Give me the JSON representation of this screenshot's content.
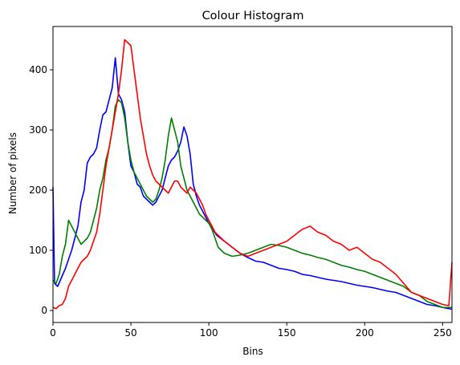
{
  "chart_data": {
    "type": "line",
    "title": "Colour Histogram",
    "xlabel": "Bins",
    "ylabel": "Number of pixels",
    "xlim": [
      0,
      256
    ],
    "ylim": [
      -20,
      472
    ],
    "xticks": [
      0,
      50,
      100,
      150,
      200,
      250
    ],
    "yticks": [
      0,
      100,
      200,
      300,
      400
    ],
    "grid": false,
    "series": [
      {
        "color": "#0000ff",
        "points": [
          [
            0,
            205
          ],
          [
            1,
            45
          ],
          [
            3,
            40
          ],
          [
            5,
            52
          ],
          [
            8,
            70
          ],
          [
            10,
            85
          ],
          [
            12,
            100
          ],
          [
            14,
            120
          ],
          [
            16,
            140
          ],
          [
            18,
            180
          ],
          [
            20,
            200
          ],
          [
            22,
            245
          ],
          [
            24,
            255
          ],
          [
            26,
            260
          ],
          [
            28,
            270
          ],
          [
            30,
            300
          ],
          [
            32,
            325
          ],
          [
            34,
            330
          ],
          [
            36,
            350
          ],
          [
            38,
            370
          ],
          [
            40,
            420
          ],
          [
            42,
            360
          ],
          [
            44,
            350
          ],
          [
            46,
            330
          ],
          [
            48,
            280
          ],
          [
            50,
            240
          ],
          [
            52,
            230
          ],
          [
            54,
            210
          ],
          [
            56,
            205
          ],
          [
            58,
            190
          ],
          [
            60,
            185
          ],
          [
            62,
            180
          ],
          [
            64,
            175
          ],
          [
            66,
            180
          ],
          [
            68,
            190
          ],
          [
            70,
            200
          ],
          [
            72,
            220
          ],
          [
            74,
            240
          ],
          [
            76,
            250
          ],
          [
            78,
            255
          ],
          [
            80,
            265
          ],
          [
            82,
            280
          ],
          [
            84,
            305
          ],
          [
            86,
            290
          ],
          [
            88,
            260
          ],
          [
            90,
            210
          ],
          [
            92,
            190
          ],
          [
            94,
            175
          ],
          [
            96,
            165
          ],
          [
            98,
            155
          ],
          [
            100,
            145
          ],
          [
            105,
            125
          ],
          [
            110,
            115
          ],
          [
            115,
            105
          ],
          [
            120,
            95
          ],
          [
            125,
            88
          ],
          [
            130,
            82
          ],
          [
            135,
            80
          ],
          [
            140,
            75
          ],
          [
            145,
            70
          ],
          [
            150,
            68
          ],
          [
            155,
            65
          ],
          [
            160,
            60
          ],
          [
            165,
            58
          ],
          [
            170,
            55
          ],
          [
            175,
            52
          ],
          [
            180,
            50
          ],
          [
            185,
            48
          ],
          [
            190,
            45
          ],
          [
            195,
            42
          ],
          [
            200,
            40
          ],
          [
            205,
            38
          ],
          [
            210,
            35
          ],
          [
            215,
            32
          ],
          [
            220,
            30
          ],
          [
            225,
            25
          ],
          [
            230,
            20
          ],
          [
            235,
            15
          ],
          [
            240,
            10
          ],
          [
            245,
            8
          ],
          [
            250,
            5
          ],
          [
            256,
            2
          ]
        ]
      },
      {
        "color": "#008000",
        "points": [
          [
            0,
            50
          ],
          [
            2,
            45
          ],
          [
            4,
            60
          ],
          [
            6,
            90
          ],
          [
            8,
            110
          ],
          [
            10,
            150
          ],
          [
            12,
            140
          ],
          [
            14,
            130
          ],
          [
            16,
            120
          ],
          [
            18,
            110
          ],
          [
            20,
            115
          ],
          [
            22,
            120
          ],
          [
            24,
            130
          ],
          [
            26,
            150
          ],
          [
            28,
            170
          ],
          [
            30,
            200
          ],
          [
            32,
            220
          ],
          [
            34,
            250
          ],
          [
            36,
            270
          ],
          [
            38,
            300
          ],
          [
            40,
            340
          ],
          [
            42,
            350
          ],
          [
            44,
            345
          ],
          [
            46,
            320
          ],
          [
            48,
            280
          ],
          [
            50,
            250
          ],
          [
            52,
            230
          ],
          [
            54,
            220
          ],
          [
            56,
            210
          ],
          [
            58,
            200
          ],
          [
            60,
            190
          ],
          [
            62,
            185
          ],
          [
            64,
            180
          ],
          [
            66,
            185
          ],
          [
            68,
            200
          ],
          [
            70,
            220
          ],
          [
            72,
            250
          ],
          [
            74,
            290
          ],
          [
            76,
            320
          ],
          [
            78,
            300
          ],
          [
            80,
            280
          ],
          [
            82,
            240
          ],
          [
            84,
            220
          ],
          [
            86,
            200
          ],
          [
            88,
            190
          ],
          [
            90,
            180
          ],
          [
            92,
            170
          ],
          [
            94,
            160
          ],
          [
            96,
            155
          ],
          [
            98,
            150
          ],
          [
            100,
            145
          ],
          [
            102,
            135
          ],
          [
            104,
            120
          ],
          [
            106,
            105
          ],
          [
            108,
            100
          ],
          [
            110,
            95
          ],
          [
            115,
            90
          ],
          [
            120,
            92
          ],
          [
            125,
            95
          ],
          [
            130,
            100
          ],
          [
            135,
            105
          ],
          [
            140,
            110
          ],
          [
            145,
            108
          ],
          [
            150,
            105
          ],
          [
            155,
            100
          ],
          [
            160,
            95
          ],
          [
            165,
            92
          ],
          [
            170,
            88
          ],
          [
            175,
            85
          ],
          [
            180,
            80
          ],
          [
            185,
            75
          ],
          [
            190,
            72
          ],
          [
            195,
            68
          ],
          [
            200,
            65
          ],
          [
            205,
            60
          ],
          [
            210,
            55
          ],
          [
            215,
            50
          ],
          [
            220,
            45
          ],
          [
            225,
            40
          ],
          [
            230,
            30
          ],
          [
            235,
            25
          ],
          [
            240,
            15
          ],
          [
            245,
            10
          ],
          [
            250,
            5
          ],
          [
            256,
            5
          ]
        ]
      },
      {
        "color": "#ff0000",
        "points": [
          [
            0,
            5
          ],
          [
            2,
            3
          ],
          [
            4,
            8
          ],
          [
            6,
            10
          ],
          [
            8,
            20
          ],
          [
            10,
            40
          ],
          [
            12,
            50
          ],
          [
            14,
            60
          ],
          [
            16,
            70
          ],
          [
            18,
            80
          ],
          [
            20,
            85
          ],
          [
            22,
            90
          ],
          [
            24,
            100
          ],
          [
            26,
            115
          ],
          [
            28,
            130
          ],
          [
            30,
            160
          ],
          [
            32,
            200
          ],
          [
            34,
            240
          ],
          [
            36,
            270
          ],
          [
            38,
            300
          ],
          [
            40,
            330
          ],
          [
            42,
            360
          ],
          [
            44,
            400
          ],
          [
            46,
            450
          ],
          [
            48,
            445
          ],
          [
            50,
            440
          ],
          [
            52,
            400
          ],
          [
            54,
            360
          ],
          [
            56,
            320
          ],
          [
            58,
            290
          ],
          [
            60,
            260
          ],
          [
            62,
            240
          ],
          [
            64,
            225
          ],
          [
            66,
            215
          ],
          [
            68,
            210
          ],
          [
            70,
            205
          ],
          [
            72,
            200
          ],
          [
            74,
            195
          ],
          [
            76,
            205
          ],
          [
            78,
            215
          ],
          [
            80,
            215
          ],
          [
            82,
            205
          ],
          [
            84,
            200
          ],
          [
            86,
            195
          ],
          [
            88,
            205
          ],
          [
            90,
            200
          ],
          [
            92,
            195
          ],
          [
            94,
            185
          ],
          [
            96,
            175
          ],
          [
            98,
            160
          ],
          [
            100,
            150
          ],
          [
            102,
            140
          ],
          [
            104,
            130
          ],
          [
            106,
            125
          ],
          [
            108,
            120
          ],
          [
            110,
            115
          ],
          [
            115,
            105
          ],
          [
            120,
            95
          ],
          [
            125,
            90
          ],
          [
            130,
            95
          ],
          [
            135,
            100
          ],
          [
            140,
            105
          ],
          [
            145,
            110
          ],
          [
            150,
            115
          ],
          [
            155,
            125
          ],
          [
            160,
            135
          ],
          [
            165,
            140
          ],
          [
            170,
            130
          ],
          [
            175,
            125
          ],
          [
            180,
            115
          ],
          [
            185,
            110
          ],
          [
            190,
            100
          ],
          [
            195,
            105
          ],
          [
            200,
            95
          ],
          [
            205,
            85
          ],
          [
            210,
            80
          ],
          [
            215,
            70
          ],
          [
            220,
            60
          ],
          [
            225,
            45
          ],
          [
            230,
            30
          ],
          [
            235,
            25
          ],
          [
            240,
            20
          ],
          [
            245,
            15
          ],
          [
            250,
            10
          ],
          [
            254,
            8
          ],
          [
            256,
            80
          ]
        ]
      }
    ]
  }
}
